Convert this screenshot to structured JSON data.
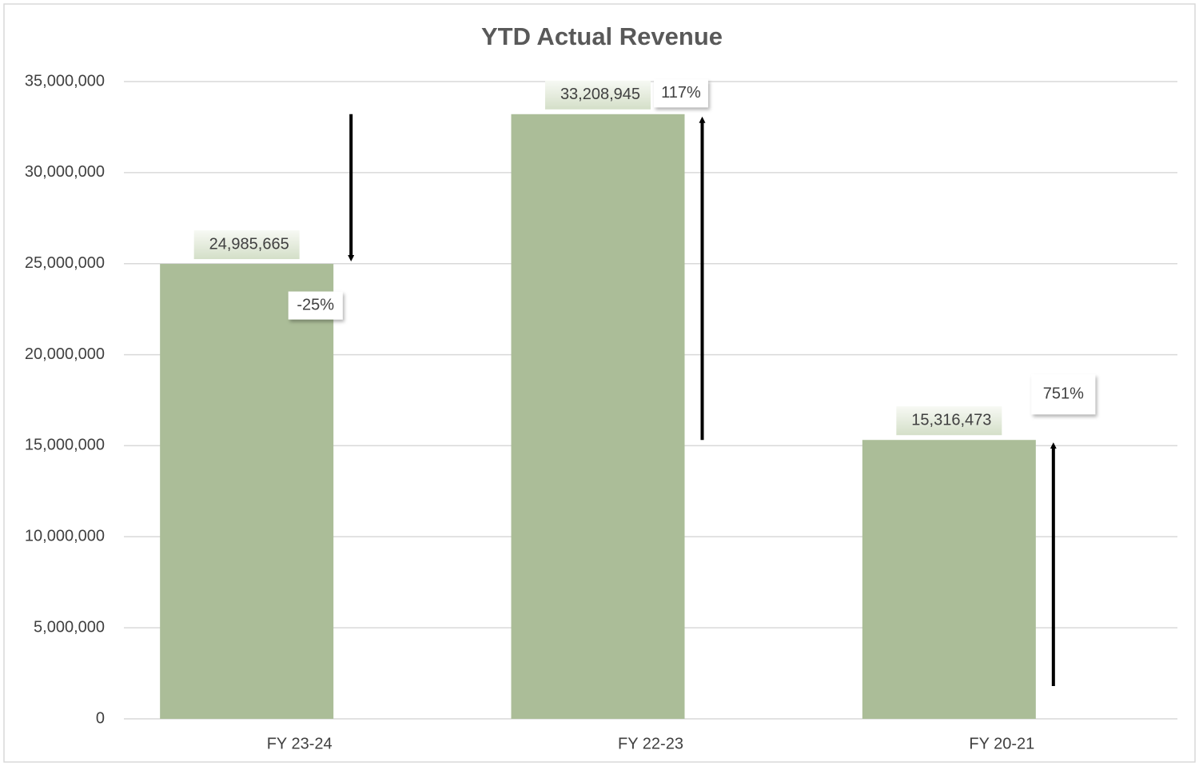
{
  "chart_data": {
    "type": "bar",
    "title": "YTD Actual Revenue",
    "categories": [
      "FY 23-24",
      "FY 22-23",
      "FY 20-21"
    ],
    "values": [
      24985665,
      33208945,
      15316473
    ],
    "value_labels": [
      "24,985,665",
      "33,208,945",
      "15,316,473"
    ],
    "color": "#abbd98",
    "ylim": [
      0,
      35000000
    ],
    "yticks": [
      0,
      {
        "value": 5000000,
        "label": "5,000,000"
      },
      {
        "value": 10000000,
        "label": "10,000,000"
      },
      {
        "value": 15000000,
        "label": "15,000,000"
      },
      {
        "value": 20000000,
        "label": "20,000,000"
      },
      {
        "value": 25000000,
        "label": "25,000,000"
      },
      {
        "value": 30000000,
        "label": "30,000,000"
      },
      {
        "value": 35000000,
        "label": "35,000,000"
      }
    ],
    "grid": true,
    "annotations": [
      "-25%",
      "117%",
      "751%"
    ]
  }
}
